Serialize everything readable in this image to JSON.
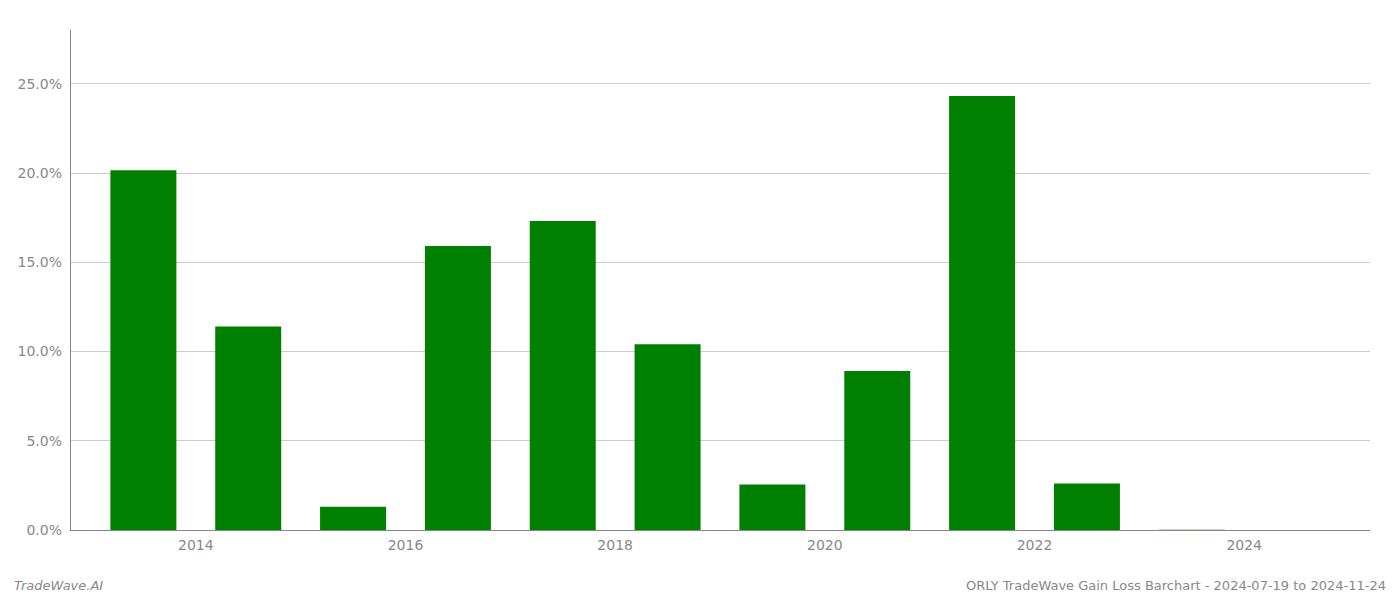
{
  "chart_data": {
    "type": "bar",
    "x": [
      2013,
      2014,
      2015,
      2016,
      2017,
      2018,
      2019,
      2020,
      2021,
      2022,
      2023
    ],
    "values": [
      0.2015,
      0.114,
      0.013,
      0.159,
      0.173,
      0.104,
      0.0255,
      0.089,
      0.243,
      0.026,
      0.0002
    ],
    "color": "#008000",
    "xlim": [
      2012.3,
      2024.7
    ],
    "xticks": [
      {
        "value": 2013.5,
        "label": "2014"
      },
      {
        "value": 2015.5,
        "label": "2016"
      },
      {
        "value": 2017.5,
        "label": "2018"
      },
      {
        "value": 2019.5,
        "label": "2020"
      },
      {
        "value": 2021.5,
        "label": "2022"
      },
      {
        "value": 2023.5,
        "label": "2024"
      }
    ],
    "ylim": [
      0,
      0.28
    ],
    "yticks": [
      {
        "value": 0.0,
        "label": "0.0%"
      },
      {
        "value": 0.05,
        "label": "5.0%"
      },
      {
        "value": 0.1,
        "label": "10.0%"
      },
      {
        "value": 0.15,
        "label": "15.0%"
      },
      {
        "value": 0.2,
        "label": "20.0%"
      },
      {
        "value": 0.25,
        "label": "25.0%"
      }
    ],
    "grid": true,
    "annotations": [
      "TradeWave.AI",
      "ORLY TradeWave Gain Loss Barchart - 2024-07-19 to 2024-11-24"
    ]
  }
}
